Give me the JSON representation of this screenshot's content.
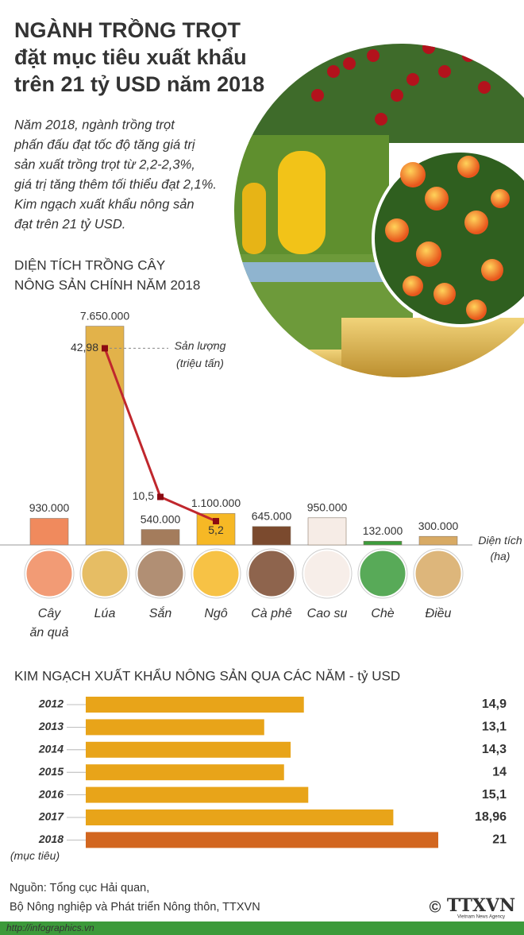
{
  "header": {
    "title": [
      "NGÀNH TRỒNG TRỌT",
      "đặt mục tiêu xuất khẩu",
      "trên 21 tỷ USD năm 2018"
    ],
    "intro": [
      "Năm 2018, ngành trồng trọt",
      "phấn đấu đạt tốc độ tăng giá trị",
      "sản xuất trồng trọt từ 2,2-2,3%,",
      "giá trị tăng thêm tối thiểu đạt 2,1%.",
      "Kim ngạch xuất khẩu nông sản",
      "đạt trên 21 tỷ USD."
    ]
  },
  "chart_data": [
    {
      "type": "bar",
      "title": [
        "DIỆN TÍCH TRỒNG CÂY",
        "NÔNG SẢN CHÍNH NĂM 2018"
      ],
      "categories": [
        "Cây ăn quả",
        "Lúa",
        "Sắn",
        "Ngô",
        "Cà phê",
        "Cao su",
        "Chè",
        "Điều"
      ],
      "values": [
        930000,
        7650000,
        540000,
        1100000,
        645000,
        950000,
        132000,
        300000
      ],
      "value_labels": [
        "930.000",
        "7.650.000",
        "540.000",
        "1.100.000",
        "645.000",
        "950.000",
        "132.000",
        "300.000"
      ],
      "colors": [
        "#f08a5d",
        "#e2b24a",
        "#a47c5c",
        "#f6b825",
        "#7b4a2e",
        "#f6ece6",
        "#3c9c3c",
        "#d8aa64"
      ],
      "ylabel": [
        "Diện tích",
        "(ha)"
      ],
      "ylim": [
        0,
        8000000
      ],
      "series": [
        {
          "name": "Sản lượng (triệu tấn)",
          "axis": "y2",
          "color": "#c0272d",
          "values": [
            null,
            42.98,
            10.5,
            5.2,
            null,
            null,
            null,
            null
          ],
          "value_labels": [
            null,
            "42,98",
            "10,5",
            "5,2",
            null,
            null,
            null,
            null
          ]
        }
      ],
      "y2lim": [
        0,
        50
      ]
    },
    {
      "type": "hbar",
      "title": "KIM NGẠCH XUẤT KHẨU NÔNG SẢN QUA CÁC NĂM - tỷ USD",
      "categories": [
        "2012",
        "2013",
        "2014",
        "2015",
        "2016",
        "2017",
        "2018"
      ],
      "annotation": "(mục tiêu)",
      "values": [
        14.9,
        13.1,
        14.3,
        14,
        15.1,
        18.96,
        21
      ],
      "value_labels": [
        "14,9",
        "13,1",
        "14,3",
        "14",
        "15,1",
        "18,96",
        "21"
      ],
      "colors": [
        "#e8a419",
        "#e8a419",
        "#e8a419",
        "#e8a419",
        "#e8a419",
        "#e8a419",
        "#d2661f"
      ],
      "xlim": [
        5,
        21
      ]
    }
  ],
  "source": [
    "Nguồn: Tổng cục Hải quan,",
    "Bộ Nông nghiệp và Phát triển Nông thôn, TTXVN"
  ],
  "website": "http://infographics.vn",
  "logo": {
    "symbol": "©",
    "text": "TTXVN",
    "subtitle": "Vietnam News Agency"
  }
}
